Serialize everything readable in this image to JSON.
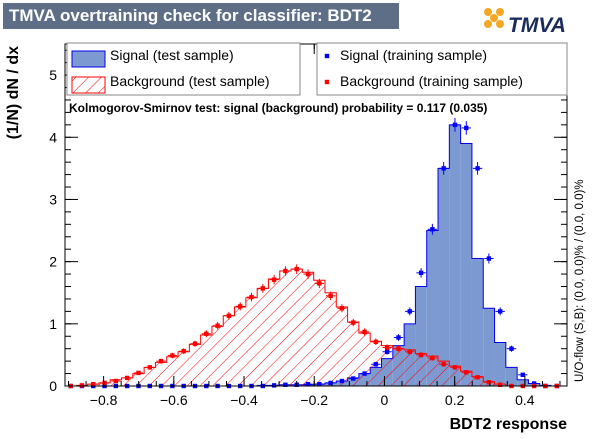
{
  "title": "TMVA overtraining check for classifier: BDT2",
  "logo_text": "TMVA",
  "uo_flow_note": "U/O-flow (S,B): (0.0, 0.0)% / (0.0, 0.0)%",
  "ks_text": "Kolmogorov-Smirnov test: signal (background) probability = 0.117 (0.035)",
  "colors": {
    "title_bg": "#5f6e87",
    "signal_fill": "#7d99d1",
    "signal_line": "#0000ee",
    "background_hatch": "#ff0000",
    "signal_marker": "#0000ff",
    "background_marker": "#ff0000",
    "logo_dots": "#f5a623"
  },
  "legend": [
    {
      "label": "Signal (test sample)",
      "kind": "signal-test"
    },
    {
      "label": "Signal (training sample)",
      "kind": "signal-train"
    },
    {
      "label": "Background (test sample)",
      "kind": "background-test"
    },
    {
      "label": "Background (training sample)",
      "kind": "background-train"
    }
  ],
  "chart_data": {
    "type": "bar",
    "xlabel": "BDT2 response",
    "ylabel": "(1/N) dN / dx",
    "xlim": [
      -0.91,
      0.52
    ],
    "ylim": [
      0,
      5.5
    ],
    "xticks": [
      -0.8,
      -0.6,
      -0.4,
      -0.2,
      0,
      0.2,
      0.4
    ],
    "xtick_labels": [
      "−0.8",
      "−0.6",
      "−0.4",
      "−0.2",
      "0",
      "0.2",
      "0.4"
    ],
    "yticks": [
      0,
      1,
      2,
      3,
      4,
      5
    ],
    "ytick_labels": [
      "0",
      "1",
      "2",
      "3",
      "4",
      "5"
    ],
    "bin_edges": [
      -0.91,
      -0.8778,
      -0.8456,
      -0.8134,
      -0.7812,
      -0.749,
      -0.7168,
      -0.6846,
      -0.6524,
      -0.6202,
      -0.588,
      -0.5558,
      -0.5236,
      -0.4914,
      -0.4592,
      -0.427,
      -0.3948,
      -0.3626,
      -0.3304,
      -0.2982,
      -0.266,
      -0.2338,
      -0.2016,
      -0.1694,
      -0.1372,
      -0.105,
      -0.0728,
      -0.0406,
      -0.0084,
      0.0238,
      0.056,
      0.0882,
      0.1204,
      0.1526,
      0.1848,
      0.217,
      0.2492,
      0.2814,
      0.3136,
      0.3458,
      0.378,
      0.4102,
      0.4424,
      0.4746,
      0.5068
    ],
    "series": [
      {
        "name": "Signal (test sample)",
        "style": "filled-histogram",
        "values": [
          0,
          0,
          0,
          0,
          0,
          0,
          0,
          0,
          0,
          0,
          0,
          0,
          0,
          0,
          0,
          0,
          0,
          0.01,
          0.01,
          0.02,
          0.02,
          0.02,
          0.03,
          0.05,
          0.08,
          0.13,
          0.2,
          0.3,
          0.44,
          0.65,
          1.0,
          1.6,
          2.5,
          3.5,
          4.2,
          3.9,
          2.05,
          1.25,
          0.7,
          0.3,
          0.1,
          0.04,
          0.01,
          0.0
        ]
      },
      {
        "name": "Background (test sample)",
        "style": "hatched-histogram",
        "values": [
          0.0,
          0.01,
          0.03,
          0.05,
          0.1,
          0.13,
          0.2,
          0.3,
          0.38,
          0.47,
          0.55,
          0.67,
          0.82,
          0.96,
          1.13,
          1.27,
          1.42,
          1.57,
          1.72,
          1.85,
          1.88,
          1.83,
          1.7,
          1.5,
          1.27,
          1.03,
          0.85,
          0.72,
          0.65,
          0.6,
          0.58,
          0.52,
          0.48,
          0.4,
          0.32,
          0.24,
          0.15,
          0.07,
          0.03,
          0.0,
          0.0,
          0.0,
          0.0,
          0.0
        ]
      },
      {
        "name": "Signal (training sample)",
        "style": "markers",
        "values": [
          0,
          0,
          0,
          0,
          0,
          0,
          0,
          0,
          0,
          0,
          0,
          0,
          0,
          0,
          0.0,
          0.0,
          0.0,
          0.0,
          0.01,
          0.02,
          0.02,
          0.03,
          0.03,
          0.05,
          0.08,
          0.12,
          0.2,
          0.35,
          0.55,
          0.78,
          1.2,
          1.82,
          2.52,
          3.5,
          4.2,
          4.15,
          3.5,
          2.05,
          1.2,
          0.6,
          0.18,
          0.04,
          0.0,
          0.0
        ]
      },
      {
        "name": "Background (training sample)",
        "style": "markers",
        "values": [
          0.0,
          0.01,
          0.03,
          0.05,
          0.08,
          0.13,
          0.21,
          0.3,
          0.4,
          0.49,
          0.56,
          0.68,
          0.84,
          0.97,
          1.13,
          1.28,
          1.43,
          1.57,
          1.71,
          1.85,
          1.88,
          1.8,
          1.65,
          1.45,
          1.25,
          1.02,
          0.87,
          0.71,
          0.62,
          0.6,
          0.55,
          0.5,
          0.45,
          0.35,
          0.3,
          0.22,
          0.14,
          0.06,
          0.02,
          0.0,
          0.0,
          0.0,
          0.0,
          0.0
        ]
      }
    ]
  }
}
